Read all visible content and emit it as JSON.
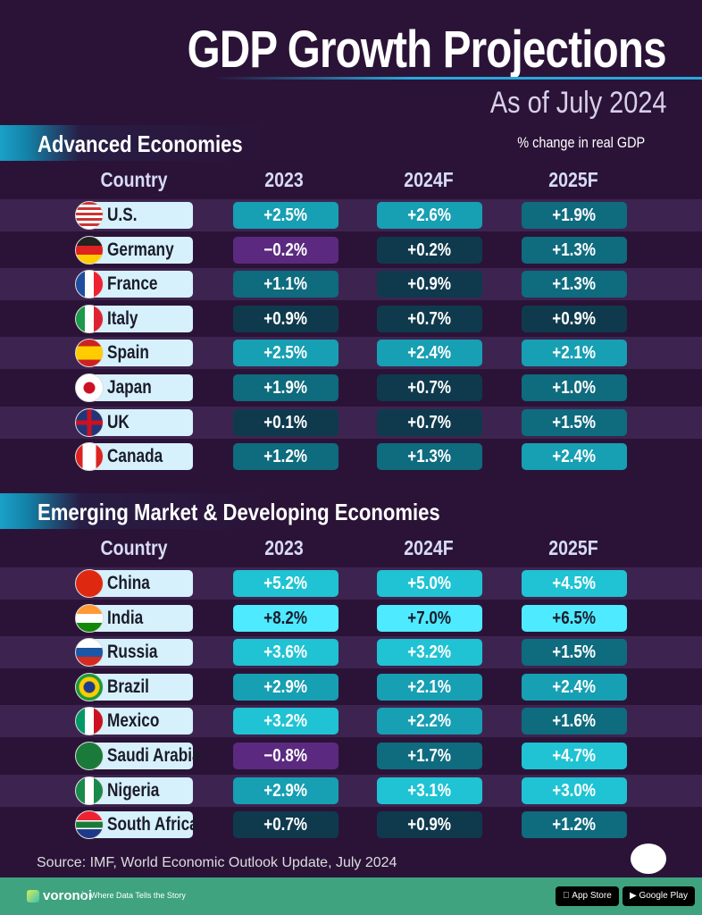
{
  "title": "GDP Growth Projections",
  "subtitle": "As of July 2024",
  "unit_note": "% change in real GDP",
  "columns": [
    "Country",
    "2023",
    "2024F",
    "2025F"
  ],
  "colors": {
    "negative": "#5b2a80",
    "low": "#0f3a4d",
    "mid": "#0f6b7e",
    "high": "#179fb3",
    "higher": "#1fc3d3",
    "top": "#4eeaff",
    "background": "#2b1338",
    "footer": "#3fa37f"
  },
  "chart_data": {
    "type": "table",
    "title": "GDP Growth Projections",
    "subtitle": "As of July 2024",
    "sections": [
      {
        "name": "Advanced Economies",
        "rows": [
          {
            "country": "U.S.",
            "flag": "us",
            "values": [
              "+2.5%",
              "+2.6%",
              "+1.9%"
            ]
          },
          {
            "country": "Germany",
            "flag": "de",
            "values": [
              "−0.2%",
              "+0.2%",
              "+1.3%"
            ]
          },
          {
            "country": "France",
            "flag": "fr",
            "values": [
              "+1.1%",
              "+0.9%",
              "+1.3%"
            ]
          },
          {
            "country": "Italy",
            "flag": "it",
            "values": [
              "+0.9%",
              "+0.7%",
              "+0.9%"
            ]
          },
          {
            "country": "Spain",
            "flag": "es",
            "values": [
              "+2.5%",
              "+2.4%",
              "+2.1%"
            ]
          },
          {
            "country": "Japan",
            "flag": "jp",
            "values": [
              "+1.9%",
              "+0.7%",
              "+1.0%"
            ]
          },
          {
            "country": "UK",
            "flag": "uk",
            "values": [
              "+0.1%",
              "+0.7%",
              "+1.5%"
            ]
          },
          {
            "country": "Canada",
            "flag": "ca",
            "values": [
              "+1.2%",
              "+1.3%",
              "+2.4%"
            ]
          }
        ]
      },
      {
        "name": "Emerging Market & Developing Economies",
        "rows": [
          {
            "country": "China",
            "flag": "cn",
            "values": [
              "+5.2%",
              "+5.0%",
              "+4.5%"
            ]
          },
          {
            "country": "India",
            "flag": "in",
            "values": [
              "+8.2%",
              "+7.0%",
              "+6.5%"
            ]
          },
          {
            "country": "Russia",
            "flag": "ru",
            "values": [
              "+3.6%",
              "+3.2%",
              "+1.5%"
            ]
          },
          {
            "country": "Brazil",
            "flag": "br",
            "values": [
              "+2.9%",
              "+2.1%",
              "+2.4%"
            ]
          },
          {
            "country": "Mexico",
            "flag": "mx",
            "values": [
              "+3.2%",
              "+2.2%",
              "+1.6%"
            ]
          },
          {
            "country": "Saudi Arabia",
            "flag": "sa",
            "values": [
              "−0.8%",
              "+1.7%",
              "+4.7%"
            ]
          },
          {
            "country": "Nigeria",
            "flag": "ng",
            "values": [
              "+2.9%",
              "+3.1%",
              "+3.0%"
            ]
          },
          {
            "country": "South Africa",
            "flag": "za",
            "values": [
              "+0.7%",
              "+0.9%",
              "+1.2%"
            ]
          }
        ]
      }
    ]
  },
  "source": "Source: IMF, World Economic Outlook Update, July 2024",
  "footer": {
    "brand": "voronoi",
    "tagline": "Where Data Tells the Story",
    "app_store": "App Store",
    "google_play": "Google Play"
  }
}
